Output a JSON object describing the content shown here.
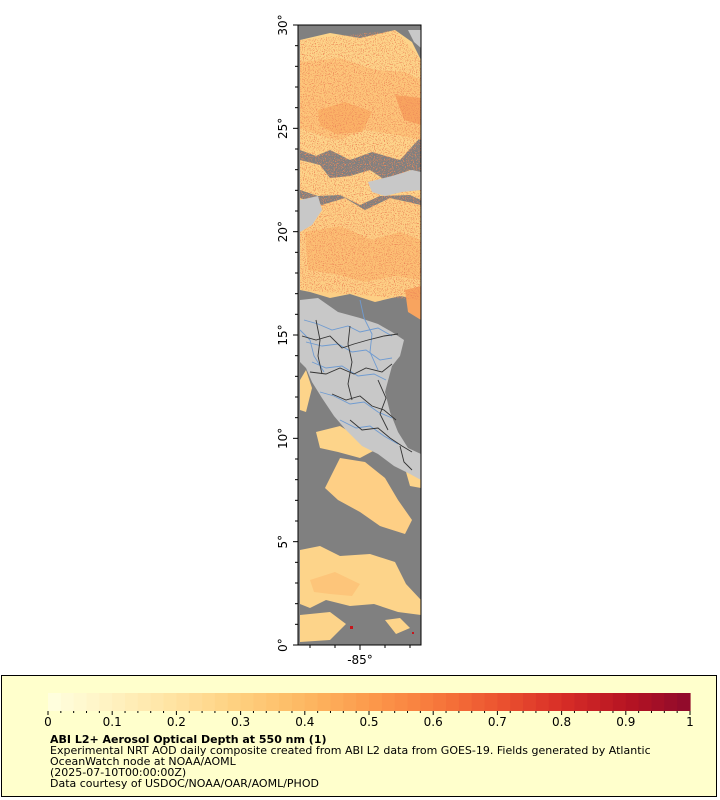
{
  "map": {
    "lat_labels": [
      "30°",
      "25°",
      "20°",
      "15°",
      "10°",
      "5°",
      "0°"
    ],
    "lat_values": [
      30,
      25,
      20,
      15,
      10,
      5,
      0
    ],
    "lon_labels": [
      "-85°"
    ],
    "lon_values": [
      -85
    ],
    "colors": {
      "no_data": "#808080",
      "land": "#c8c8c8",
      "rivers": "#6f9bd1",
      "borders": "#333333",
      "frame": "#000000"
    }
  },
  "legend": {
    "title": "ABI L2+ Aerosol Optical Depth at 550 nm (1)",
    "line1": "Experimental NRT AOD daily composite created from ABI L2 data from GOES-19. Fields generated by Atlantic",
    "line2": "OceanWatch node at NOAA/AOML",
    "line3": "(2025-07-10T00:00:00Z)",
    "line4": "Data courtesy of USDOC/NOAA/OAR/AOML/PHOD",
    "tick_labels": [
      "0",
      "0.1",
      "0.2",
      "0.3",
      "0.4",
      "0.5",
      "0.6",
      "0.7",
      "0.8",
      "0.9",
      "1"
    ],
    "range": [
      0,
      1
    ],
    "scale_colors": [
      "#ffffe0",
      "#fff2c0",
      "#ffe2a0",
      "#fecf7e",
      "#fdb862",
      "#fc9a4c",
      "#f77a3c",
      "#ec5430",
      "#d82e27",
      "#b71422",
      "#8e0a2c"
    ]
  }
}
